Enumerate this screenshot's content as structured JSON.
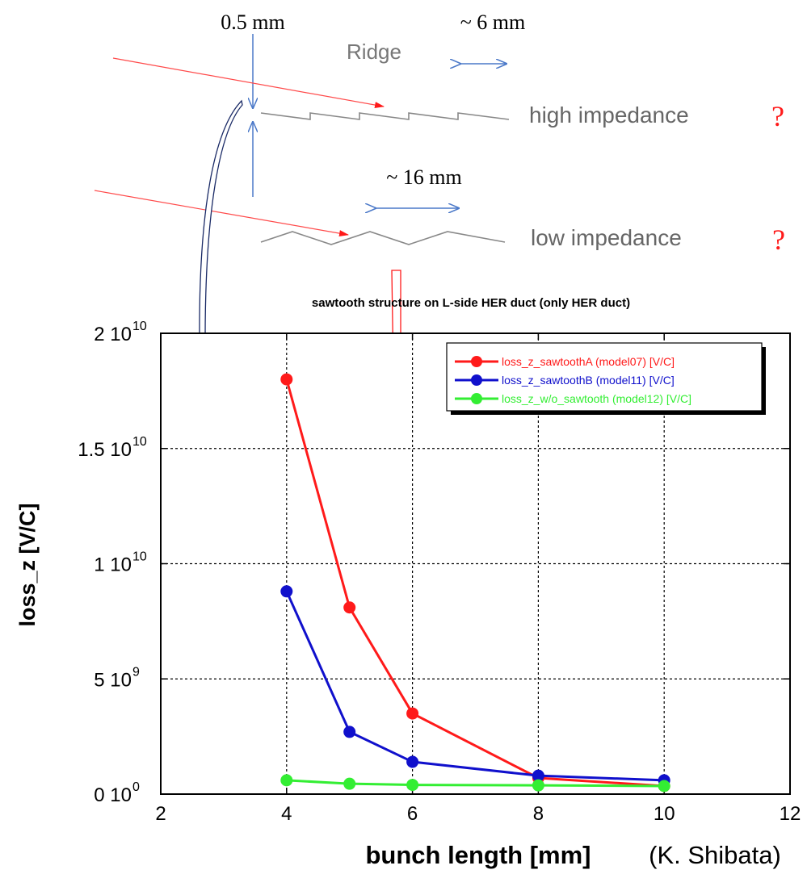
{
  "diagram": {
    "dim_ridge_height": "0.5 mm",
    "dim_high_pitch": "~ 6 mm",
    "ridge_label": "Ridge",
    "dim_low_pitch": "~ 16 mm",
    "high_label": "high  impedance",
    "high_question": "?",
    "low_label": "low  impedance",
    "low_question": "?",
    "arrow_color": "#ff4a4a",
    "dim_color": "#4a78c8"
  },
  "credit": "(K. Shibata)",
  "chart_data": {
    "type": "line",
    "title": "sawtooth structure on L-side HER duct (only HER duct)",
    "xlabel": "bunch length [mm]",
    "ylabel": "loss_z [V/C]",
    "xlim": [
      2,
      12
    ],
    "ylim": [
      0,
      20000000000
    ],
    "x_ticks": [
      "2",
      "4",
      "6",
      "8",
      "10",
      "12"
    ],
    "y_ticks": [
      {
        "mant": "0 10",
        "exp": "0"
      },
      {
        "mant": "5 10",
        "exp": "9"
      },
      {
        "mant": "1 10",
        "exp": "10"
      },
      {
        "mant": "1.5 10",
        "exp": "10"
      },
      {
        "mant": "2 10",
        "exp": "10"
      }
    ],
    "grid": true,
    "legend_position": "top-right",
    "x": [
      4,
      5,
      6,
      8,
      10
    ],
    "series": [
      {
        "name": "loss_z_sawtoothA (model07) [V/C]",
        "color": "#ff1a1a",
        "values": [
          18000000000,
          8100000000,
          3500000000,
          700000000,
          350000000
        ]
      },
      {
        "name": "loss_z_sawtoothB (model11) [V/C]",
        "color": "#1010cc",
        "values": [
          8800000000,
          2700000000,
          1400000000,
          800000000,
          600000000
        ]
      },
      {
        "name": "loss_z_w/o_sawtooth (model12) [V/C]",
        "color": "#33ee33",
        "values": [
          600000000,
          450000000,
          400000000,
          380000000,
          350000000
        ]
      }
    ]
  }
}
